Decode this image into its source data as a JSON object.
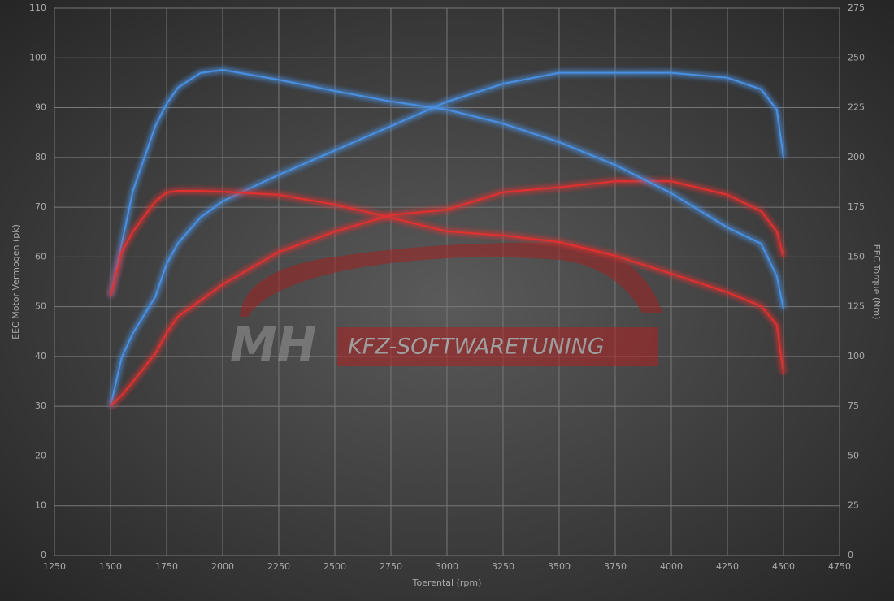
{
  "chart_data": {
    "type": "line",
    "x_label": "Toerental (rpm)",
    "y_label": "EEC Motor Vermogen (pk)",
    "y2_label": "EEC Torque (Nm)",
    "watermark": {
      "logo": "MH",
      "text": "KFZ-SOFTWARETUNING"
    },
    "x": [
      1500,
      1550,
      1600,
      1700,
      1750,
      1800,
      1900,
      2000,
      2250,
      2500,
      2750,
      3000,
      3250,
      3500,
      3750,
      4000,
      4250,
      4400,
      4470,
      4500
    ],
    "series": [
      {
        "color": "#4a90e2",
        "values": [
          30,
          39.8,
          44.7,
          52,
          58.6,
          62.7,
          67.9,
          71.2,
          76.5,
          81.4,
          86.3,
          91.2,
          94.8,
          97,
          97,
          97,
          96,
          93.7,
          89.6,
          80
        ]
      },
      {
        "color": "#e03030",
        "values": [
          30,
          32.2,
          34.9,
          40.6,
          44.7,
          48,
          51.2,
          54.5,
          61,
          65.1,
          68.4,
          69.5,
          73,
          74,
          75.2,
          75.2,
          72.5,
          69.2,
          65.1,
          60
        ]
      },
      {
        "color": "#4a90e2",
        "axis": "y2",
        "values": [
          130.2,
          156.7,
          183.2,
          215.8,
          226.9,
          235,
          242.4,
          244,
          239,
          233.4,
          228.1,
          224,
          217,
          207.7,
          196.2,
          182,
          164.8,
          156.7,
          140.4,
          124
        ]
      },
      {
        "color": "#e03030",
        "axis": "y2",
        "values": [
          130.2,
          152.6,
          162.8,
          177.9,
          182.4,
          183.2,
          183.2,
          182.8,
          181.2,
          176.3,
          169.7,
          162.8,
          160.8,
          157.5,
          150.6,
          141.6,
          132.2,
          125.3,
          115.9,
          91.4
        ]
      }
    ],
    "xlim": [
      1250,
      4750
    ],
    "xticks": [
      1250,
      1500,
      1750,
      2000,
      2250,
      2500,
      2750,
      3000,
      3250,
      3500,
      3750,
      4000,
      4250,
      4500,
      4750
    ],
    "ylim": [
      0,
      110
    ],
    "yticks": [
      0,
      10,
      20,
      30,
      40,
      50,
      60,
      70,
      80,
      90,
      100,
      110
    ],
    "y2lim": [
      0,
      275
    ],
    "y2ticks": [
      0,
      25,
      50,
      75,
      100,
      125,
      150,
      175,
      200,
      225,
      250,
      275
    ],
    "grid": true
  }
}
